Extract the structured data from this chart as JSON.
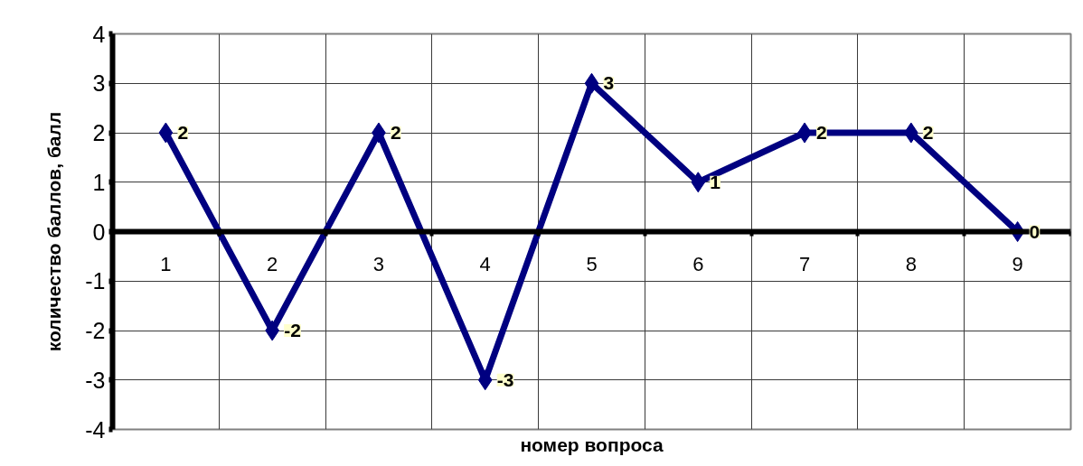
{
  "chart_data": {
    "type": "line",
    "xlabel": "номер вопроса",
    "ylabel": "количество баллов, балл",
    "categories": [
      "1",
      "2",
      "3",
      "4",
      "5",
      "6",
      "7",
      "8",
      "9"
    ],
    "series": [
      {
        "color": "#000080",
        "values": [
          2,
          -2,
          2,
          -3,
          3,
          1,
          2,
          2,
          0
        ]
      }
    ],
    "ylim": [
      -4,
      4
    ],
    "yticks": [
      -4,
      -3,
      -2,
      -1,
      0,
      1,
      2,
      3,
      4
    ],
    "grid": true,
    "marker": "diamond",
    "line_style": "solid",
    "data_labels": true
  }
}
